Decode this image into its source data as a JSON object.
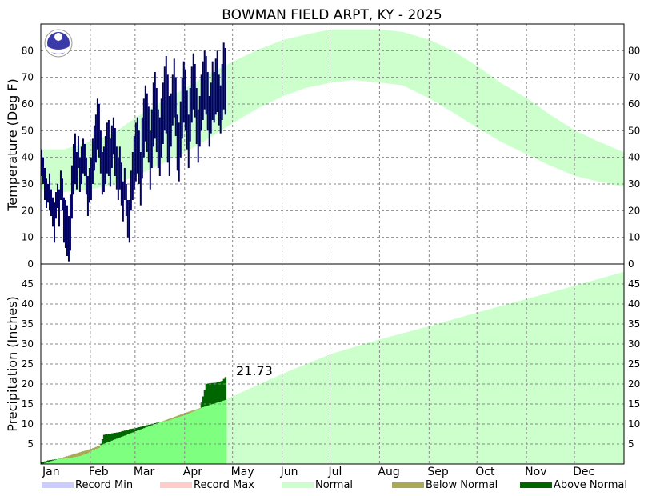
{
  "chart_data": {
    "type": "area",
    "title": "BOWMAN FIELD ARPT, KY - 2025",
    "months": [
      "Jan",
      "Feb",
      "Mar",
      "Apr",
      "May",
      "Jun",
      "Jul",
      "Aug",
      "Sep",
      "Oct",
      "Nov",
      "Dec"
    ],
    "temperature": {
      "ylabel": "Temperature (Deg F)",
      "ylim": [
        0,
        90
      ],
      "yticks": [
        0,
        10,
        20,
        30,
        40,
        50,
        60,
        70,
        80
      ],
      "normal_band": {
        "day": [
          1,
          15,
          32,
          46,
          60,
          74,
          91,
          105,
          121,
          135,
          152,
          166,
          182,
          196,
          213,
          227,
          244,
          258,
          274,
          288,
          305,
          319,
          335,
          349,
          365
        ],
        "low": [
          28,
          27,
          28,
          30,
          33,
          37,
          42,
          47,
          53,
          58,
          63,
          66,
          68,
          69,
          68,
          67,
          62,
          57,
          51,
          46,
          41,
          37,
          33,
          31,
          29
        ],
        "high": [
          43,
          43,
          46,
          49,
          55,
          60,
          66,
          71,
          76,
          80,
          84,
          86,
          88,
          88,
          88,
          87,
          84,
          80,
          74,
          68,
          62,
          56,
          50,
          46,
          42
        ]
      },
      "observed_daily_range": {
        "low": [
          33,
          30,
          24,
          21,
          23,
          20,
          18,
          14,
          8,
          17,
          21,
          14,
          24,
          20,
          8,
          6,
          3,
          1,
          5,
          17,
          26,
          30,
          28,
          36,
          27,
          30,
          34,
          33,
          26,
          18,
          23,
          24,
          30,
          35,
          38,
          43,
          40,
          34,
          26,
          27,
          30,
          34,
          33,
          29,
          36,
          41,
          33,
          28,
          24,
          28,
          22,
          16,
          24,
          18,
          10,
          8,
          20,
          24,
          28,
          31,
          34,
          30,
          22,
          32,
          40,
          46,
          42,
          38,
          28,
          36,
          44,
          47,
          42,
          36,
          33,
          40,
          45,
          50,
          49,
          38,
          33,
          44,
          52,
          55,
          48,
          35,
          31,
          40,
          47,
          53,
          50,
          43,
          36,
          46,
          53,
          58,
          55,
          45,
          38,
          44,
          50,
          54,
          58,
          56,
          50,
          44,
          49,
          54,
          53,
          56,
          57,
          52,
          49,
          54,
          58,
          56
        ],
        "high": [
          43,
          40,
          36,
          32,
          30,
          34,
          28,
          25,
          23,
          27,
          30,
          28,
          35,
          32,
          25,
          24,
          22,
          18,
          26,
          37,
          45,
          49,
          42,
          48,
          40,
          44,
          47,
          45,
          40,
          33,
          36,
          40,
          47,
          52,
          56,
          62,
          60,
          50,
          42,
          44,
          48,
          53,
          54,
          47,
          52,
          55,
          51,
          44,
          40,
          44,
          38,
          31,
          36,
          30,
          24,
          24,
          35,
          42,
          48,
          53,
          55,
          50,
          42,
          55,
          62,
          67,
          64,
          59,
          50,
          58,
          68,
          72,
          66,
          58,
          55,
          62,
          68,
          74,
          78,
          71,
          63,
          64,
          71,
          77,
          70,
          56,
          53,
          61,
          70,
          76,
          73,
          65,
          56,
          66,
          74,
          79,
          75,
          66,
          58,
          63,
          71,
          76,
          80,
          78,
          72,
          63,
          68,
          76,
          72,
          77,
          80,
          71,
          67,
          75,
          83,
          81
        ]
      }
    },
    "precipitation": {
      "ylabel": "Precipitation (Inches)",
      "ylim": [
        0,
        50
      ],
      "yticks": [
        5,
        10,
        15,
        20,
        25,
        30,
        35,
        40,
        45
      ],
      "normal_accumulated": {
        "day": [
          1,
          32,
          60,
          91,
          116,
          121,
          152,
          182,
          213,
          244,
          274,
          305,
          335,
          365
        ],
        "value": [
          0.0,
          3.8,
          8.2,
          12.8,
          16.0,
          17.0,
          22.6,
          27.5,
          31.2,
          34.5,
          37.9,
          41.3,
          44.6,
          48.0
        ]
      },
      "observed_accumulated": {
        "day": [
          1,
          5,
          10,
          14,
          20,
          25,
          30,
          33,
          37,
          40,
          44,
          50,
          56,
          60,
          65,
          70,
          75,
          80,
          85,
          89,
          92,
          97,
          100,
          104,
          106,
          110,
          114,
          116
        ],
        "value": [
          0.4,
          0.9,
          1.2,
          1.3,
          1.6,
          2.0,
          2.7,
          3.5,
          4.0,
          7.3,
          7.6,
          8.0,
          8.7,
          9.0,
          9.5,
          10.0,
          10.5,
          10.8,
          11.5,
          12.0,
          12.4,
          13.3,
          13.8,
          20.0,
          20.2,
          20.3,
          20.8,
          21.73
        ]
      },
      "annotation": "21.73"
    },
    "legend": [
      {
        "label": "Record Min",
        "color": "#ccccff"
      },
      {
        "label": "Record Max",
        "color": "#ffcccc"
      },
      {
        "label": "Normal",
        "color": "#ccffcc"
      },
      {
        "label": "Below Normal",
        "color": "#aaaa55"
      },
      {
        "label": "Above Normal",
        "color": "#006600"
      }
    ],
    "colors": {
      "observed_temp": "#000066",
      "normal_band": "#ccffcc",
      "observed_precip_fill": "#7fff7f",
      "above_normal": "#006600",
      "below_normal": "#aaaa55",
      "grid": "#888888"
    }
  }
}
